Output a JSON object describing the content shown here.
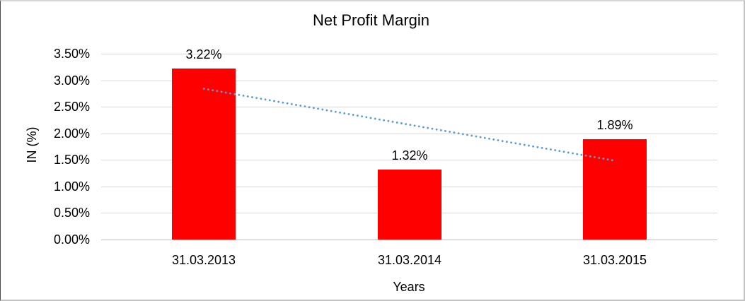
{
  "chart_data": {
    "type": "bar",
    "title": "Net Profit Margin",
    "categories": [
      "31.03.2013",
      "31.03.2014",
      "31.03.2015"
    ],
    "values": [
      3.22,
      1.32,
      1.89
    ],
    "data_labels": [
      "3.22%",
      "1.32%",
      "1.89%"
    ],
    "xlabel": "Years",
    "ylabel": "IN (%)",
    "ylim": [
      0,
      3.5
    ],
    "ytick_step": 0.5,
    "ytick_labels": [
      "0.00%",
      "0.50%",
      "1.00%",
      "1.50%",
      "2.00%",
      "2.50%",
      "3.00%",
      "3.50%"
    ],
    "grid": true,
    "legend": "none",
    "bar_color": "#FF0000",
    "gridline_color": "#D9D9D9",
    "axis_line_color": "#C0C0C0",
    "text_color": "#000000",
    "trendline": {
      "type": "linear",
      "style": "dotted",
      "color": "#5B9BD5",
      "start_value": 2.84,
      "end_value": 1.49,
      "from_category_index": 0,
      "to_category_index": 2
    }
  }
}
